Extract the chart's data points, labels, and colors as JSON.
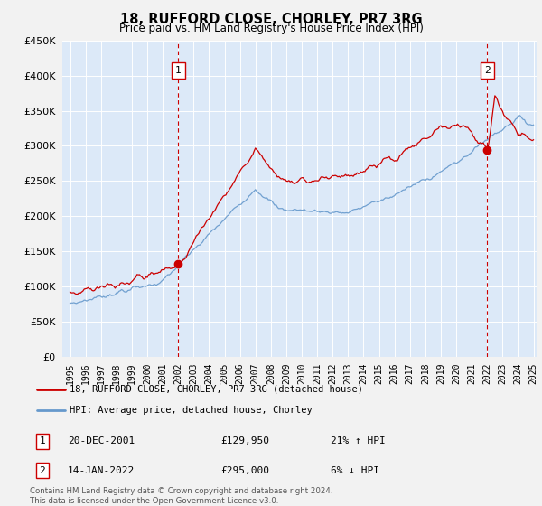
{
  "title": "18, RUFFORD CLOSE, CHORLEY, PR7 3RG",
  "subtitle": "Price paid vs. HM Land Registry's House Price Index (HPI)",
  "legend_line1": "18, RUFFORD CLOSE, CHORLEY, PR7 3RG (detached house)",
  "legend_line2": "HPI: Average price, detached house, Chorley",
  "annotation1_label": "1",
  "annotation1_date": "20-DEC-2001",
  "annotation1_price": "£129,950",
  "annotation1_hpi": "21% ↑ HPI",
  "annotation2_label": "2",
  "annotation2_date": "14-JAN-2022",
  "annotation2_price": "£295,000",
  "annotation2_hpi": "6% ↓ HPI",
  "footer": "Contains HM Land Registry data © Crown copyright and database right 2024.\nThis data is licensed under the Open Government Licence v3.0.",
  "fig_bg_color": "#f2f2f2",
  "plot_bg_color": "#dce9f8",
  "hpi_line_color": "#6699cc",
  "price_line_color": "#cc0000",
  "vline_color": "#cc0000",
  "sale_dot_color": "#cc0000",
  "ylim": [
    0,
    450000
  ],
  "yticks": [
    0,
    50000,
    100000,
    150000,
    200000,
    250000,
    300000,
    350000,
    400000,
    450000
  ],
  "x_start_year": 1995,
  "x_end_year": 2025,
  "sale1_year": 2001.96,
  "sale1_price": 129950,
  "sale2_year": 2022.04,
  "sale2_price": 295000
}
